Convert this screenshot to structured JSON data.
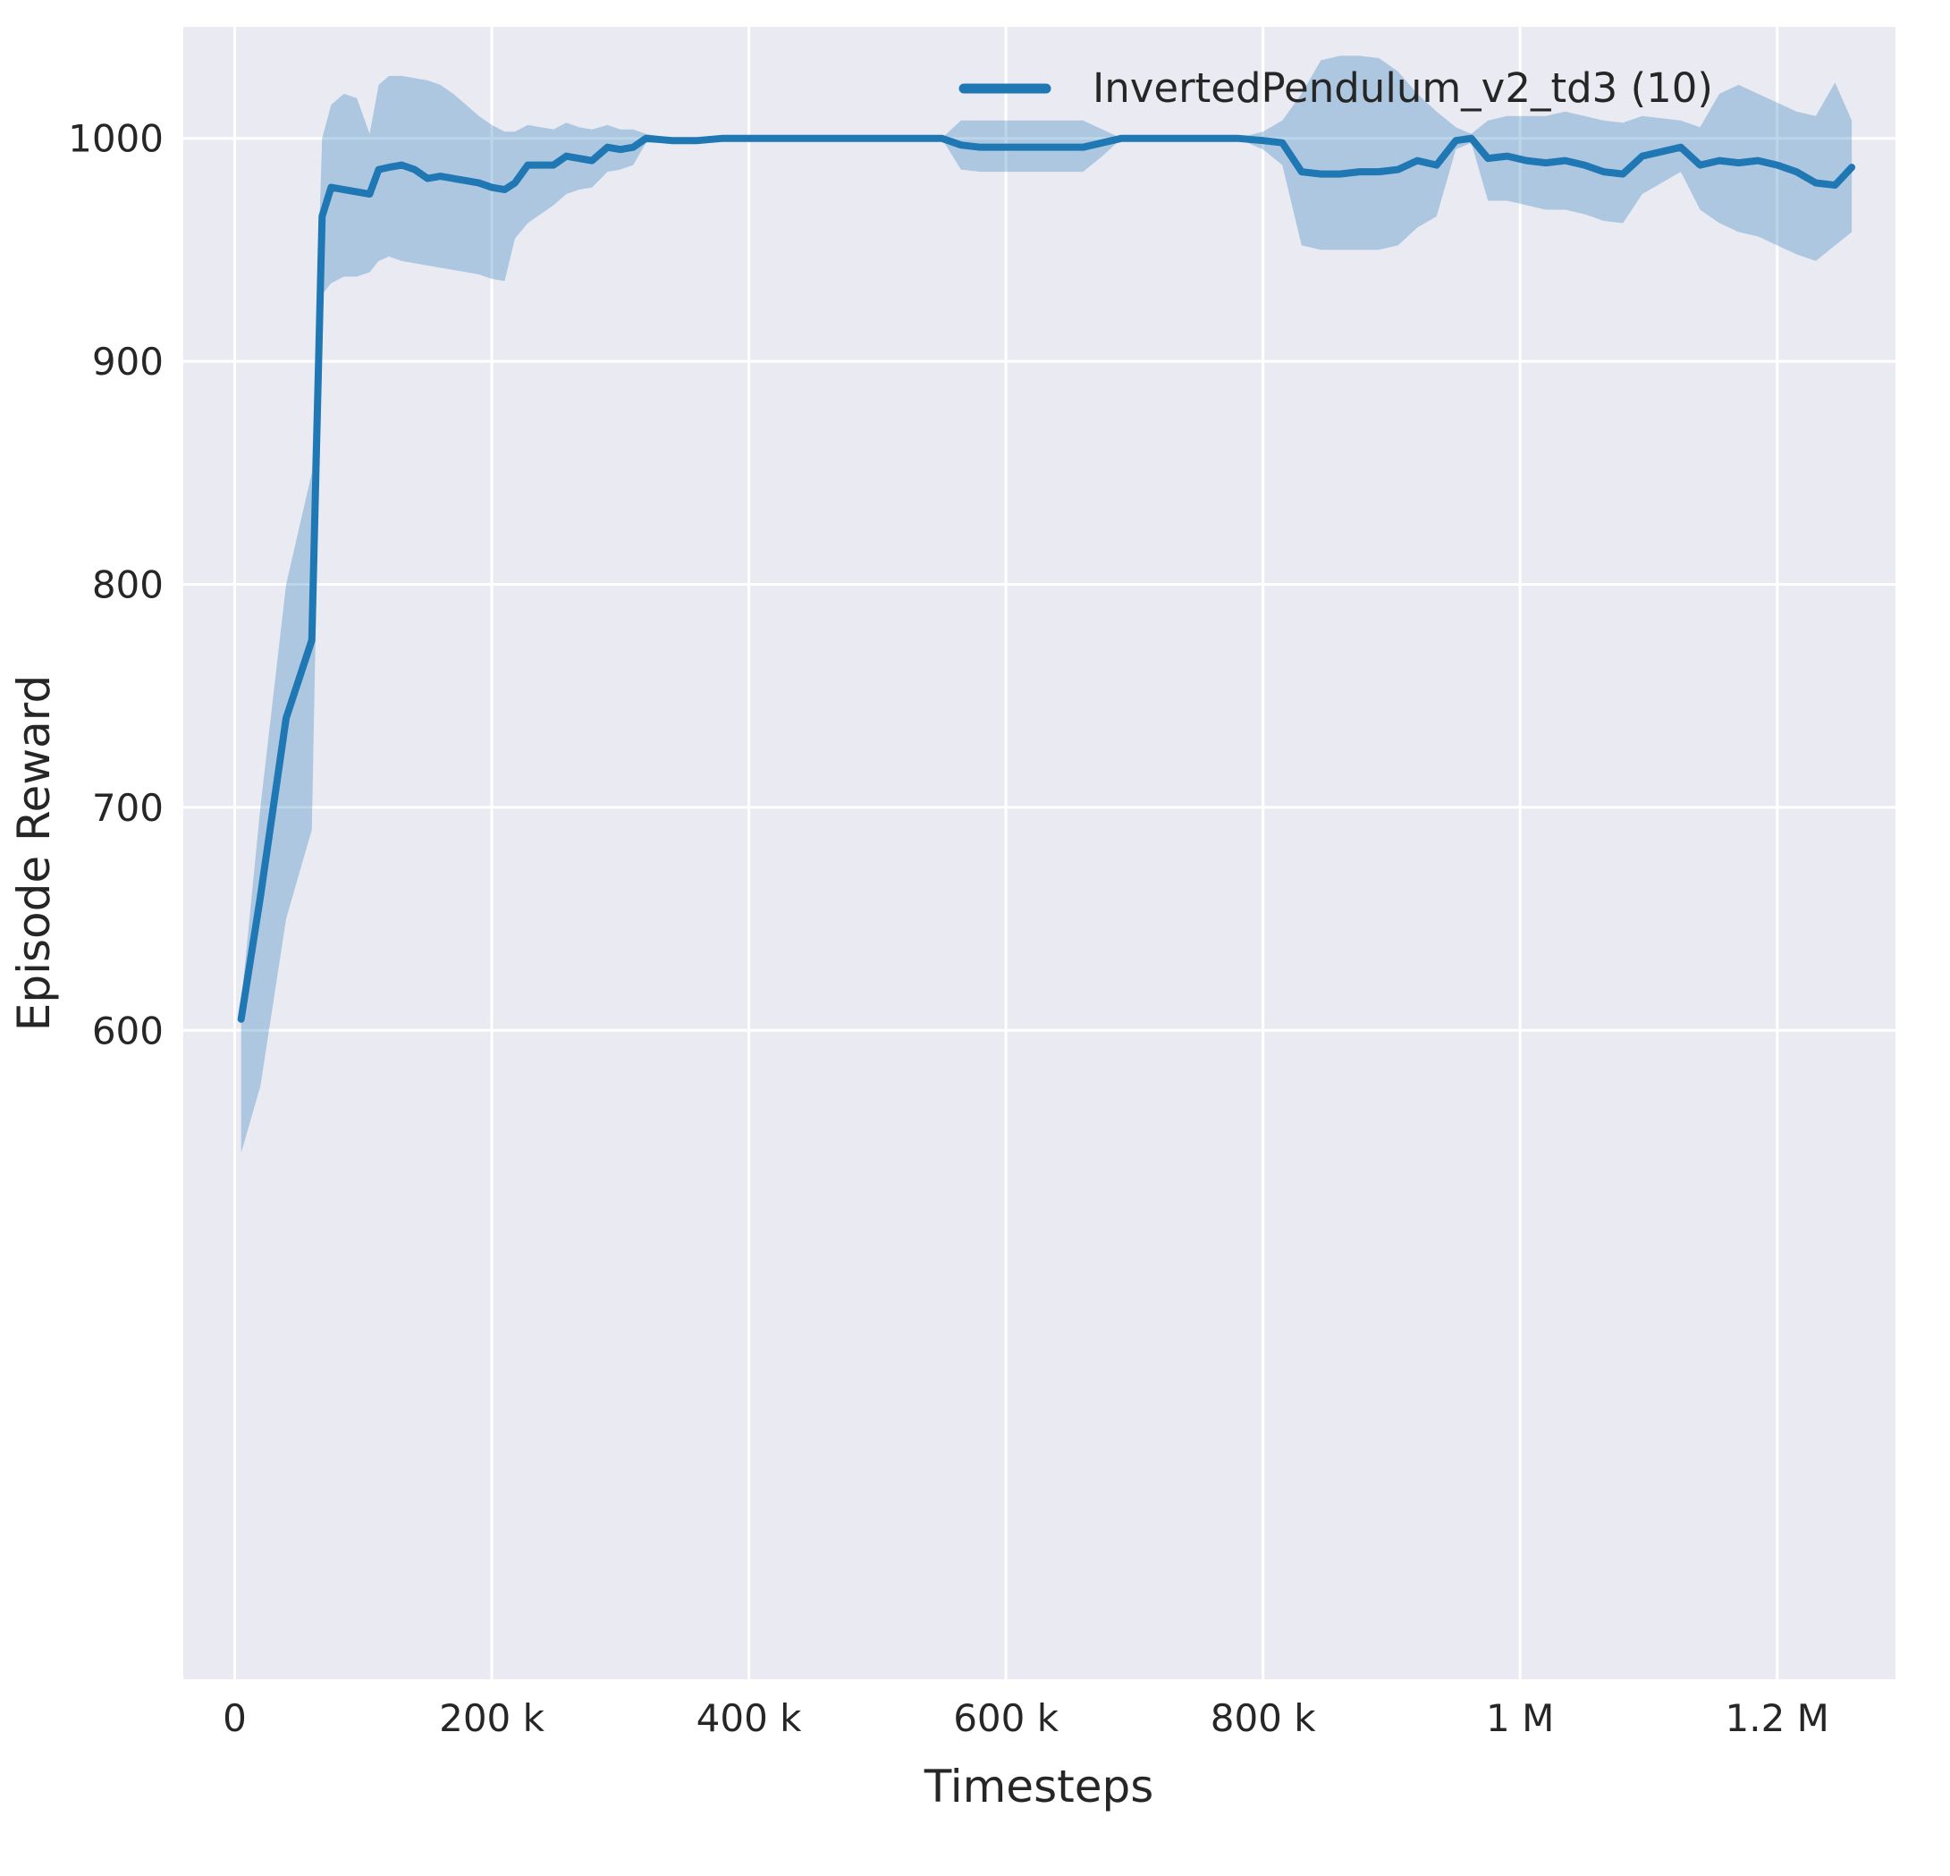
{
  "figure": {
    "legend": {
      "entries": [
        {
          "label": "InvertedPendulum_v2_td3 (10)",
          "color": "#1f77b4"
        }
      ]
    }
  },
  "style": {
    "figure_bg": "#ffffff",
    "plot_bg": "#eaeaf2",
    "grid_color": "#ffffff",
    "text_color": "#262626",
    "line_color": "#1f77b4",
    "band_color": "#1f77b4",
    "band_opacity": 0.3
  },
  "chart_data": {
    "type": "line",
    "title": "",
    "xlabel": "Timesteps",
    "ylabel": "Episode Reward",
    "xlim": [
      -40000,
      1292000
    ],
    "ylim": [
      309,
      1050
    ],
    "grid": true,
    "legend_position": "upper right",
    "xticks": {
      "values": [
        0,
        200000,
        400000,
        600000,
        800000,
        1000000,
        1200000
      ],
      "labels": [
        "0",
        "200 k",
        "400 k",
        "600 k",
        "800 k",
        "1 M",
        "1.2 M"
      ]
    },
    "yticks": {
      "values": [
        600,
        700,
        800,
        900,
        1000
      ],
      "labels": [
        "600",
        "700",
        "800",
        "900",
        "1000"
      ]
    },
    "series": [
      {
        "name": "InvertedPendulum_v2_td3 (10)",
        "x": [
          5000,
          20000,
          40000,
          60000,
          68000,
          75000,
          85000,
          95000,
          105000,
          112000,
          120000,
          130000,
          140000,
          150000,
          160000,
          170000,
          180000,
          190000,
          200000,
          210000,
          218000,
          228000,
          238000,
          248000,
          258000,
          268000,
          278000,
          290000,
          300000,
          310000,
          320000,
          340000,
          360000,
          380000,
          400000,
          430000,
          460000,
          490000,
          520000,
          550000,
          565000,
          580000,
          600000,
          620000,
          640000,
          660000,
          675000,
          690000,
          720000,
          750000,
          780000,
          800000,
          815000,
          830000,
          845000,
          860000,
          875000,
          890000,
          905000,
          920000,
          935000,
          950000,
          962000,
          975000,
          990000,
          1005000,
          1020000,
          1035000,
          1050000,
          1065000,
          1080000,
          1095000,
          1110000,
          1125000,
          1140000,
          1155000,
          1170000,
          1185000,
          1200000,
          1215000,
          1230000,
          1245000,
          1258000
        ],
        "mean": [
          605,
          660,
          740,
          775,
          965,
          978,
          977,
          976,
          975,
          986,
          987,
          988,
          986,
          982,
          983,
          982,
          981,
          980,
          978,
          977,
          980,
          988,
          988,
          988,
          992,
          991,
          990,
          996,
          995,
          996,
          1000,
          999,
          999,
          1000,
          1000,
          1000,
          1000,
          1000,
          1000,
          1000,
          997,
          996,
          996,
          996,
          996,
          996,
          998,
          1000,
          1000,
          1000,
          1000,
          999,
          998,
          985,
          984,
          984,
          985,
          985,
          986,
          990,
          988,
          999,
          1000,
          991,
          992,
          990,
          989,
          990,
          988,
          985,
          984,
          992,
          994,
          996,
          988,
          990,
          989,
          990,
          988,
          985,
          980,
          979,
          987
        ],
        "band_low": [
          545,
          575,
          650,
          690,
          930,
          935,
          938,
          938,
          940,
          945,
          947,
          945,
          944,
          943,
          942,
          941,
          940,
          939,
          937,
          936,
          955,
          962,
          966,
          970,
          975,
          977,
          978,
          985,
          986,
          988,
          998,
          998,
          998,
          1000,
          1000,
          1000,
          1000,
          1000,
          1000,
          1000,
          986,
          985,
          985,
          985,
          985,
          985,
          992,
          1000,
          1000,
          1000,
          1000,
          995,
          988,
          952,
          950,
          950,
          950,
          950,
          952,
          960,
          965,
          995,
          998,
          972,
          972,
          970,
          968,
          968,
          966,
          963,
          962,
          975,
          980,
          985,
          968,
          962,
          958,
          956,
          952,
          948,
          945,
          952,
          958
        ],
        "band_high": [
          612,
          700,
          800,
          850,
          1000,
          1015,
          1020,
          1018,
          1002,
          1024,
          1028,
          1028,
          1027,
          1026,
          1024,
          1020,
          1015,
          1010,
          1006,
          1003,
          1003,
          1006,
          1005,
          1004,
          1007,
          1005,
          1004,
          1006,
          1004,
          1004,
          1002,
          1000,
          1000,
          1000,
          1000,
          1000,
          1000,
          1000,
          1000,
          1000,
          1008,
          1008,
          1008,
          1008,
          1008,
          1008,
          1004,
          1000,
          1000,
          1000,
          1000,
          1003,
          1008,
          1020,
          1035,
          1037,
          1037,
          1036,
          1030,
          1020,
          1012,
          1005,
          1002,
          1008,
          1010,
          1010,
          1010,
          1012,
          1010,
          1008,
          1007,
          1010,
          1009,
          1008,
          1005,
          1020,
          1024,
          1020,
          1016,
          1012,
          1010,
          1025,
          1008
        ]
      }
    ]
  }
}
